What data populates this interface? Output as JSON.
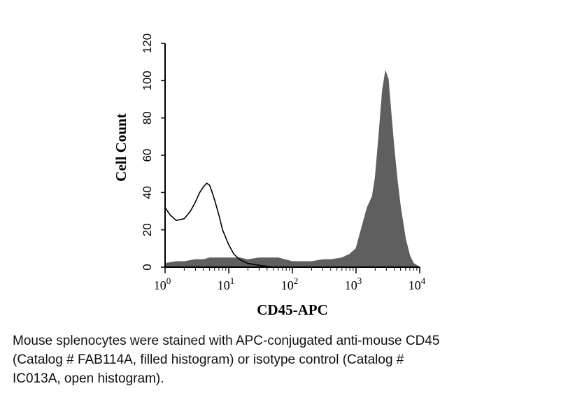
{
  "chart_data": {
    "type": "area",
    "xlabel": "CD45-APC",
    "ylabel": "Cell Count",
    "xscale": "log",
    "xlim": [
      1,
      10000
    ],
    "ylim": [
      0,
      120
    ],
    "x_ticks": [
      {
        "base": "10",
        "exp": "0"
      },
      {
        "base": "10",
        "exp": "1"
      },
      {
        "base": "10",
        "exp": "2"
      },
      {
        "base": "10",
        "exp": "3"
      },
      {
        "base": "10",
        "exp": "4"
      }
    ],
    "y_ticks": [
      "0",
      "20",
      "40",
      "60",
      "80",
      "100",
      "120"
    ],
    "grid": false,
    "series": [
      {
        "style": "filled",
        "color": "#5f5f5f",
        "x": [
          1,
          1.5,
          2,
          3,
          4,
          5,
          7,
          10,
          15,
          20,
          30,
          40,
          60,
          100,
          150,
          200,
          300,
          400,
          600,
          800,
          1000,
          1200,
          1500,
          1800,
          2000,
          2300,
          2600,
          2900,
          3200,
          3600,
          4000,
          4500,
          5000,
          6000,
          7000,
          8000,
          10000
        ],
        "y": [
          2,
          3,
          3,
          4,
          4,
          5,
          5,
          5,
          5,
          4,
          5,
          5,
          5,
          3,
          3,
          3,
          4,
          4,
          5,
          7,
          10,
          20,
          32,
          38,
          48,
          72,
          95,
          105,
          101,
          80,
          62,
          45,
          32,
          15,
          6,
          2,
          0
        ]
      },
      {
        "style": "open",
        "color": "#000000",
        "x": [
          1,
          1.2,
          1.5,
          2,
          2.5,
          3,
          3.5,
          4,
          4.5,
          5,
          5.5,
          6,
          7,
          8,
          10,
          12,
          15,
          20,
          30,
          50,
          100
        ],
        "y": [
          32,
          28,
          25,
          26,
          30,
          35,
          40,
          43,
          45,
          44,
          40,
          36,
          28,
          20,
          12,
          7,
          4,
          2,
          1,
          0,
          0
        ]
      }
    ]
  },
  "caption": "Mouse splenocytes were stained with APC-conjugated anti-mouse CD45\n(Catalog # FAB114A, filled histogram) or isotype control (Catalog #\nIC013A, open histogram)."
}
